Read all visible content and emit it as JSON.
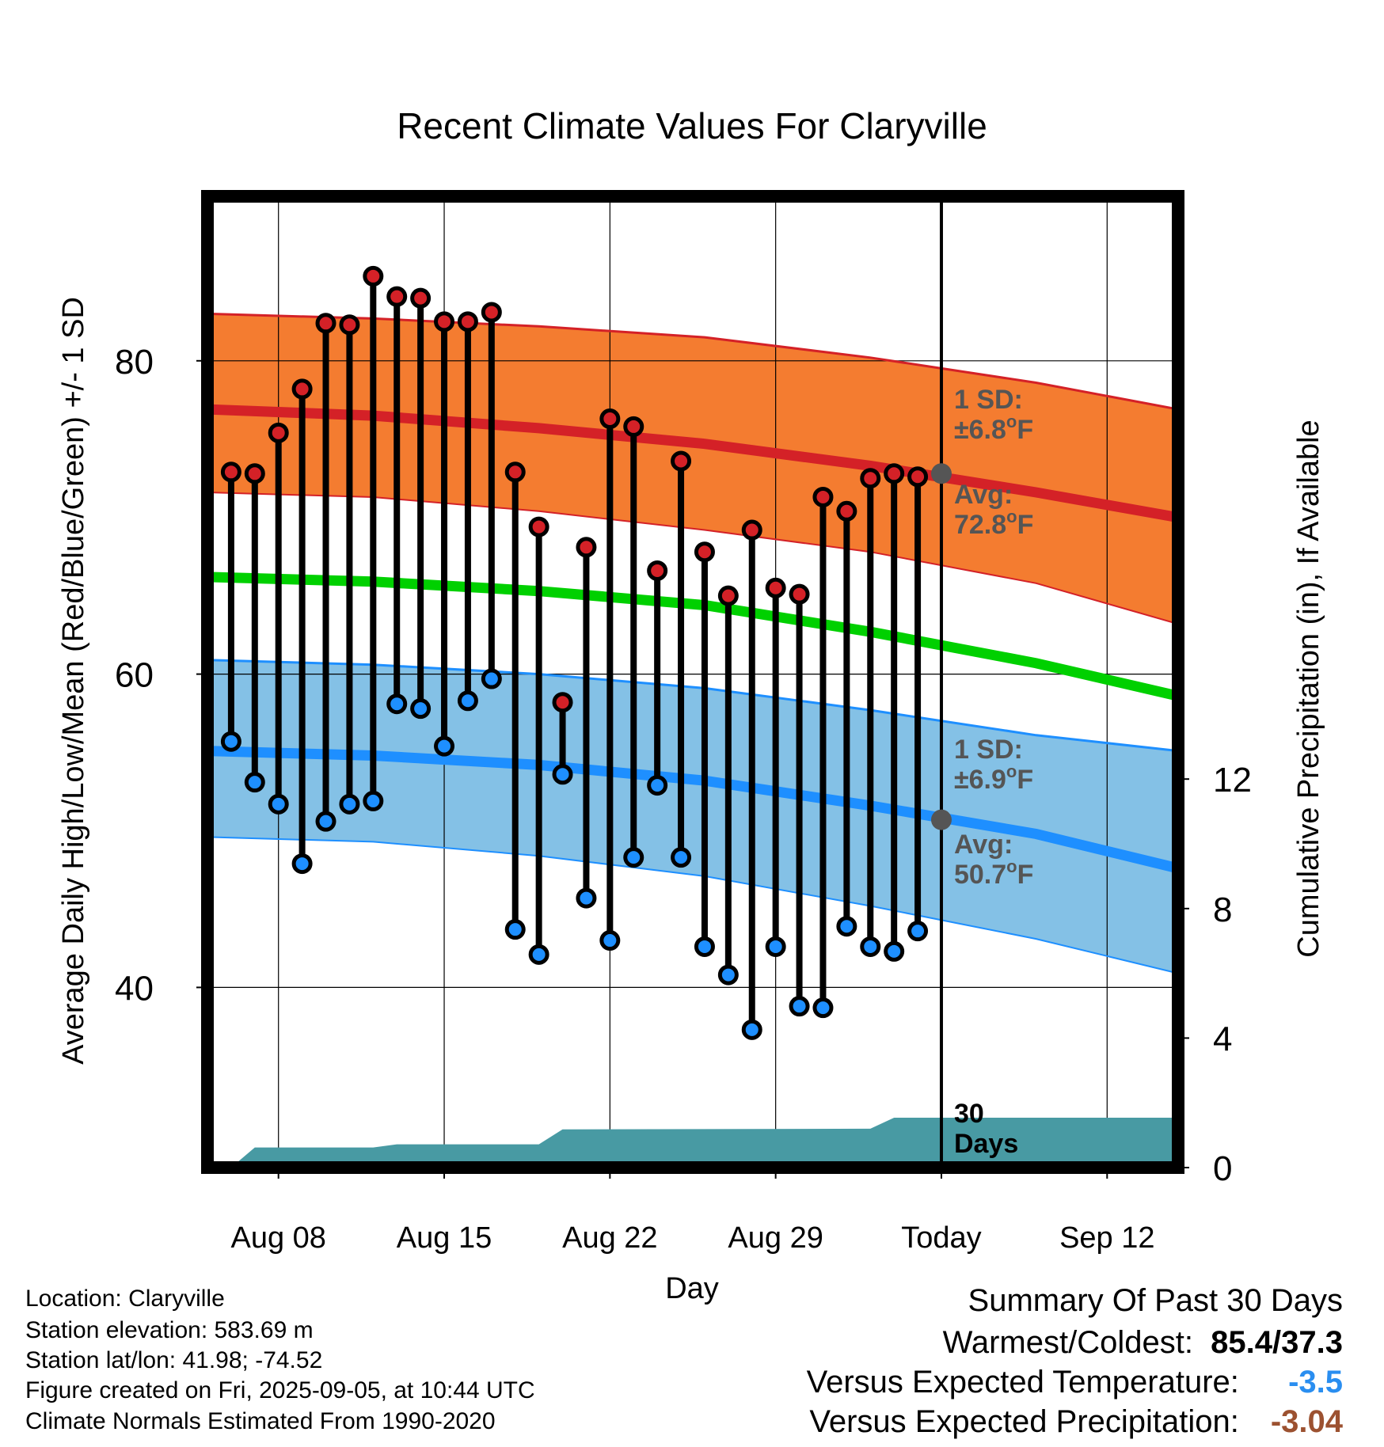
{
  "chart_data": {
    "type": "line",
    "title": "Recent Climate Values For Claryville",
    "xlabel": "Day",
    "ylabel": "Average Daily High/Low/Mean (Red/Blue/Green) +/- 1 SD",
    "y2label": "Cumulative Precipitation (in), If Available",
    "ylim": [
      28.5,
      90.5
    ],
    "y2lim": [
      0,
      30
    ],
    "xlim": [
      "2025-08-05",
      "2025-09-15"
    ],
    "yticks": [
      "40",
      "60",
      "80"
    ],
    "y2ticks": [
      "0",
      "4",
      "8",
      "12"
    ],
    "xticks": [
      {
        "date": "2025-08-08",
        "label": "Aug 08"
      },
      {
        "date": "2025-08-15",
        "label": "Aug 15"
      },
      {
        "date": "2025-08-22",
        "label": "Aug 22"
      },
      {
        "date": "2025-08-29",
        "label": "Aug 29"
      },
      {
        "date": "2025-09-05",
        "label": "Today"
      },
      {
        "date": "2025-09-12",
        "label": "Sep 12"
      }
    ],
    "grid": true,
    "today": "2025-09-05",
    "series": [
      {
        "kind": "observed",
        "dates": [
          "2025-08-06",
          "2025-08-07",
          "2025-08-08",
          "2025-08-09",
          "2025-08-10",
          "2025-08-11",
          "2025-08-12",
          "2025-08-13",
          "2025-08-14",
          "2025-08-15",
          "2025-08-16",
          "2025-08-17",
          "2025-08-18",
          "2025-08-19",
          "2025-08-20",
          "2025-08-21",
          "2025-08-22",
          "2025-08-23",
          "2025-08-24",
          "2025-08-25",
          "2025-08-26",
          "2025-08-27",
          "2025-08-28",
          "2025-08-29",
          "2025-08-30",
          "2025-08-31",
          "2025-09-01",
          "2025-09-02",
          "2025-09-03",
          "2025-09-04"
        ],
        "highs": [
          72.9,
          72.8,
          75.4,
          78.2,
          82.4,
          82.3,
          85.4,
          84.1,
          84.0,
          82.5,
          82.5,
          83.1,
          72.9,
          69.4,
          58.2,
          68.1,
          76.3,
          75.8,
          66.6,
          73.6,
          67.8,
          65.0,
          69.2,
          65.5,
          65.1,
          71.3,
          70.4,
          72.5,
          72.8,
          72.6
        ],
        "lows": [
          55.7,
          53.1,
          51.7,
          47.9,
          50.6,
          51.7,
          51.9,
          58.1,
          57.8,
          55.4,
          58.3,
          59.7,
          43.7,
          42.1,
          53.6,
          45.7,
          43.0,
          48.3,
          52.9,
          48.3,
          42.6,
          40.8,
          37.3,
          42.6,
          38.8,
          38.7,
          43.9,
          42.6,
          42.3,
          43.6
        ]
      }
    ],
    "normals": {
      "dates": [
        "2025-08-05",
        "2025-08-12",
        "2025-08-19",
        "2025-08-26",
        "2025-09-02",
        "2025-09-09",
        "2025-09-15"
      ],
      "high_mean": [
        76.9,
        76.5,
        75.7,
        74.7,
        73.3,
        71.6,
        70.0
      ],
      "high_sd_upper": [
        83.0,
        82.7,
        82.2,
        81.5,
        80.2,
        78.6,
        76.9
      ],
      "high_sd_lower": [
        71.6,
        71.3,
        70.4,
        69.2,
        67.8,
        65.8,
        63.2
      ],
      "mean": [
        66.2,
        65.9,
        65.3,
        64.4,
        62.7,
        60.7,
        58.6
      ],
      "low_mean": [
        55.1,
        54.8,
        54.2,
        53.2,
        51.6,
        49.8,
        47.6
      ],
      "low_sd_upper": [
        60.9,
        60.6,
        60.0,
        59.1,
        57.7,
        56.1,
        55.1
      ],
      "low_sd_lower": [
        49.6,
        49.3,
        48.4,
        47.1,
        45.2,
        43.1,
        40.9
      ]
    },
    "precipitation": {
      "dates": [
        "2025-08-06",
        "2025-08-07",
        "2025-08-12",
        "2025-08-13",
        "2025-08-19",
        "2025-08-20",
        "2025-09-02",
        "2025-09-03",
        "2025-09-15"
      ],
      "values": [
        0.0,
        0.62,
        0.62,
        0.72,
        0.72,
        1.18,
        1.2,
        1.54,
        1.54
      ]
    },
    "annotations": [
      {
        "series": "high",
        "line1": "1 SD:",
        "line2": "±6.8",
        "unit": "F",
        "value": 72.8
      },
      {
        "series": "high",
        "line1": "Avg:",
        "line2": "72.8",
        "unit": "F"
      },
      {
        "series": "low",
        "line1": "1 SD:",
        "line2": "±6.9",
        "unit": "F",
        "value": 50.7
      },
      {
        "series": "low",
        "line1": "Avg:",
        "line2": "50.7",
        "unit": "F"
      },
      {
        "line1": "30",
        "line2": "Days"
      }
    ],
    "colors": {
      "high_line": "#d42127",
      "high_band": "#f47c30",
      "low_line": "#1e8fff",
      "low_band": "#84c1e6",
      "mean_line": "#00d000",
      "precip_fill": "#489aa3",
      "high_marker": "#d42127",
      "low_marker": "#1e8fff",
      "today_marker": "#555555",
      "annotation_text": "#555555"
    }
  },
  "metadata": {
    "location": "Location: Claryville",
    "elevation": "Station elevation: 583.69 m",
    "latlon": "Station lat/lon: 41.98; -74.52",
    "created": "Figure created on Fri, 2025-09-05, at 10:44 UTC",
    "normals": "Climate Normals Estimated From 1990-2020"
  },
  "summary": {
    "title": "Summary Of Past 30 Days",
    "warmest_coldest_label": "Warmest/Coldest:",
    "warmest_coldest_value": "85.4/37.3",
    "vs_temp_label": "Versus Expected Temperature:",
    "vs_temp_value": "-3.5",
    "vs_temp_color": "#2a8ef0",
    "vs_precip_label": "Versus Expected Precipitation:",
    "vs_precip_value": "-3.04",
    "vs_precip_color": "#9c5130"
  }
}
